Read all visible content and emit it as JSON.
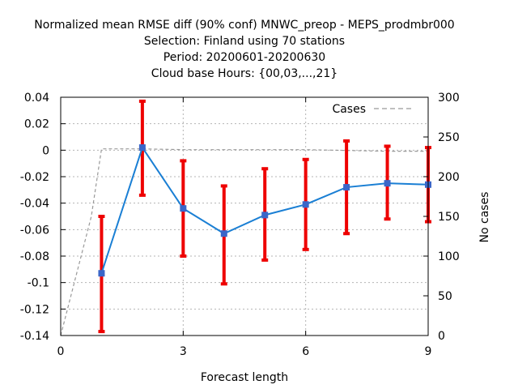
{
  "chart_data": {
    "type": "line",
    "title_lines": [
      "Normalized mean RMSE diff (90% conf) MNWC_preop - MEPS_prodmbr000",
      "Selection: Finland using    70 stations",
      "Period: 20200601-20200630",
      "Cloud base   Hours: {00,03,...,21}"
    ],
    "xlabel": "Forecast length",
    "ylabel": "",
    "y2label": "No cases",
    "xlim": [
      0,
      9
    ],
    "ylim": [
      -0.14,
      0.04
    ],
    "y2lim": [
      0,
      300
    ],
    "xticks": [
      0,
      3,
      6,
      9
    ],
    "xtick_labels": [
      "0",
      "3",
      "6",
      "9"
    ],
    "yticks": [
      -0.14,
      -0.12,
      -0.1,
      -0.08,
      -0.06,
      -0.04,
      -0.02,
      0,
      0.02,
      0.04
    ],
    "ytick_labels": [
      "-0.14",
      "-0.12",
      "-0.1",
      "-0.08",
      "-0.06",
      "-0.04",
      "-0.02",
      "0",
      "0.02",
      "0.04"
    ],
    "y2ticks": [
      0,
      50,
      100,
      150,
      200,
      250,
      300
    ],
    "y2tick_labels": [
      "0",
      "50",
      "100",
      "150",
      "200",
      "250",
      "300"
    ],
    "grid": true,
    "legend_position": "top-right",
    "series": [
      {
        "x": [
          1,
          2,
          3,
          4,
          5,
          6,
          7,
          8,
          9
        ],
        "values": [
          -0.093,
          0.002,
          -0.044,
          -0.063,
          -0.049,
          -0.041,
          -0.028,
          -0.025,
          -0.026
        ],
        "ci_low": [
          -0.137,
          -0.034,
          -0.08,
          -0.101,
          -0.083,
          -0.075,
          -0.063,
          -0.052,
          -0.054
        ],
        "ci_high": [
          -0.05,
          0.037,
          -0.008,
          -0.027,
          -0.014,
          -0.007,
          0.007,
          0.003,
          0.002
        ],
        "color": "#1a7fd4",
        "marker_color": "#3b66c8",
        "errorbar_color": "#ee0000"
      },
      {
        "name": "Cases",
        "axis": "y2",
        "x": [
          0,
          0.25,
          0.5,
          0.75,
          1,
          1.5,
          2,
          3,
          4,
          5,
          6,
          7,
          8,
          9
        ],
        "values": [
          0,
          50,
          100,
          150,
          235,
          235,
          235,
          234,
          234,
          234,
          234,
          233,
          232,
          232
        ],
        "color": "#999999",
        "dashed": true
      }
    ]
  }
}
